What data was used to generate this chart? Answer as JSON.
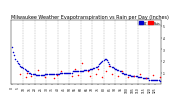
{
  "title": "Milwaukee Weather Evapotranspiration vs Rain per Day (Inches)",
  "legend_labels": [
    "ET",
    "Rain"
  ],
  "legend_colors": [
    "#0000cc",
    "#ff0000"
  ],
  "background_color": "#ffffff",
  "grid_color": "#888888",
  "et_color": "#0000cc",
  "rain_color": "#ff0000",
  "et_data": [
    0.32,
    0.28,
    0.25,
    0.22,
    0.2,
    0.18,
    0.17,
    0.16,
    0.15,
    0.15,
    0.14,
    0.13,
    0.12,
    0.11,
    0.11,
    0.1,
    0.1,
    0.09,
    0.09,
    0.09,
    0.09,
    0.08,
    0.08,
    0.08,
    0.08,
    0.08,
    0.08,
    0.08,
    0.08,
    0.09,
    0.09,
    0.09,
    0.09,
    0.09,
    0.09,
    0.09,
    0.09,
    0.09,
    0.09,
    0.09,
    0.09,
    0.09,
    0.1,
    0.1,
    0.1,
    0.1,
    0.1,
    0.1,
    0.1,
    0.1,
    0.1,
    0.1,
    0.1,
    0.11,
    0.11,
    0.11,
    0.11,
    0.11,
    0.11,
    0.11,
    0.11,
    0.11,
    0.11,
    0.12,
    0.12,
    0.12,
    0.12,
    0.12,
    0.13,
    0.13,
    0.13,
    0.14,
    0.14,
    0.15,
    0.15,
    0.16,
    0.17,
    0.18,
    0.19,
    0.2,
    0.21,
    0.22,
    0.22,
    0.21,
    0.19,
    0.17,
    0.16,
    0.15,
    0.15,
    0.14,
    0.13,
    0.13,
    0.12,
    0.12,
    0.11,
    0.11,
    0.1,
    0.1,
    0.09,
    0.09,
    0.09,
    0.08,
    0.08,
    0.08,
    0.07,
    0.07,
    0.07,
    0.07,
    0.07,
    0.07,
    0.06,
    0.06,
    0.06,
    0.06,
    0.05,
    0.05,
    0.05,
    0.05,
    0.05,
    0.05,
    0.04,
    0.04,
    0.04,
    0.04,
    0.04,
    0.04,
    0.04,
    0.04,
    0.04,
    0.03
  ],
  "rain_data": [
    0.0,
    0.0,
    0.0,
    0.0,
    0.0,
    0.0,
    0.0,
    0.09,
    0.0,
    0.0,
    0.0,
    0.0,
    0.06,
    0.1,
    0.0,
    0.0,
    0.0,
    0.07,
    0.0,
    0.0,
    0.0,
    0.0,
    0.0,
    0.12,
    0.0,
    0.0,
    0.0,
    0.0,
    0.0,
    0.06,
    0.0,
    0.0,
    0.0,
    0.0,
    0.0,
    0.0,
    0.0,
    0.05,
    0.0,
    0.08,
    0.0,
    0.0,
    0.0,
    0.11,
    0.0,
    0.0,
    0.0,
    0.0,
    0.0,
    0.0,
    0.0,
    0.0,
    0.07,
    0.0,
    0.0,
    0.13,
    0.0,
    0.0,
    0.08,
    0.0,
    0.0,
    0.18,
    0.0,
    0.0,
    0.0,
    0.0,
    0.11,
    0.0,
    0.07,
    0.0,
    0.0,
    0.0,
    0.0,
    0.09,
    0.0,
    0.13,
    0.0,
    0.0,
    0.0,
    0.06,
    0.0,
    0.0,
    0.11,
    0.0,
    0.0,
    0.16,
    0.0,
    0.09,
    0.0,
    0.0,
    0.0,
    0.0,
    0.0,
    0.07,
    0.0,
    0.0,
    0.11,
    0.0,
    0.0,
    0.0,
    0.0,
    0.06,
    0.0,
    0.0,
    0.0,
    0.0,
    0.0,
    0.07,
    0.0,
    0.0,
    0.0,
    0.0,
    0.09,
    0.0,
    0.0,
    0.0,
    0.0,
    0.05,
    0.0,
    0.0,
    0.0,
    0.0,
    0.0,
    0.08,
    0.0,
    0.0,
    0.0,
    0.0,
    0.0,
    0.06
  ],
  "ylim": [
    0.0,
    0.55
  ],
  "title_fontsize": 3.5,
  "tick_fontsize": 2.2,
  "dot_size": 1.2,
  "vline_positions": [
    10,
    20,
    30,
    40,
    50,
    60,
    70,
    80,
    90,
    100,
    110,
    120
  ],
  "ytick_positions": [
    0.1,
    0.2,
    0.3,
    0.4,
    0.5
  ],
  "ytick_labels": [
    ".1",
    ".2",
    ".3",
    ".4",
    ".5"
  ]
}
